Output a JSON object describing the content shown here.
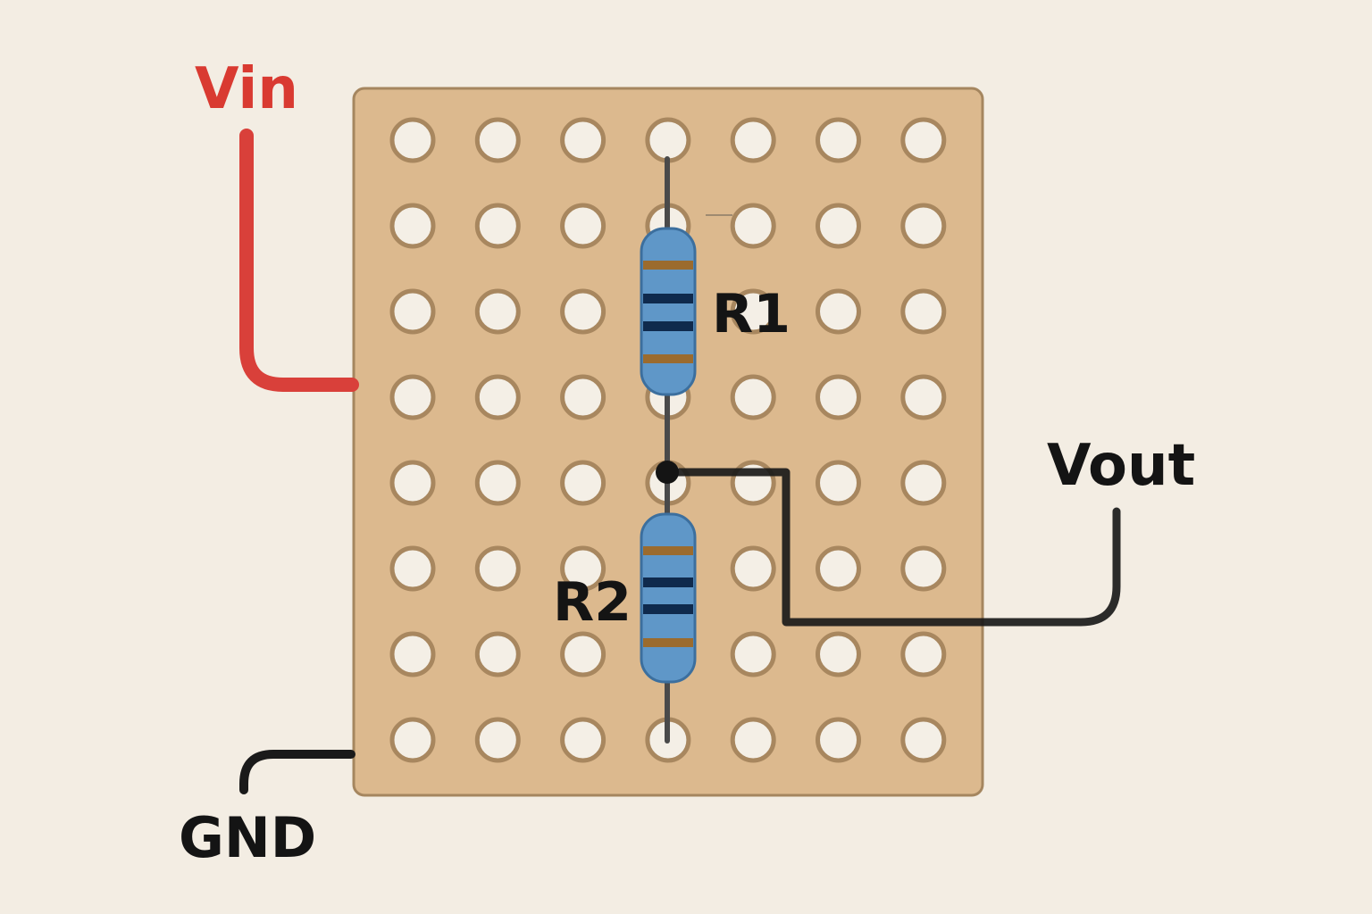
{
  "labels": {
    "vin": "Vin",
    "vout": "Vout",
    "gnd": "GND",
    "r1": "R1",
    "r2": "R2"
  },
  "board": {
    "rows": 8,
    "cols": 7
  },
  "colors": {
    "background": "#f3ede3",
    "board_fill": "#dcb98e",
    "board_border": "#a5865f",
    "hole_fill": "#f4efe6",
    "hole_ring": "#a8875f",
    "vin_wire": "#d9403a",
    "vin_label": "#d93a31",
    "signal_wire": "#1a1a1a",
    "trace": "#4a4a4a",
    "resistor_body": "#5f97c8",
    "resistor_outline": "#3c6f9e",
    "band_brown": "#9b6b2e",
    "band_navy": "#0f2a4d",
    "text": "#141414"
  }
}
